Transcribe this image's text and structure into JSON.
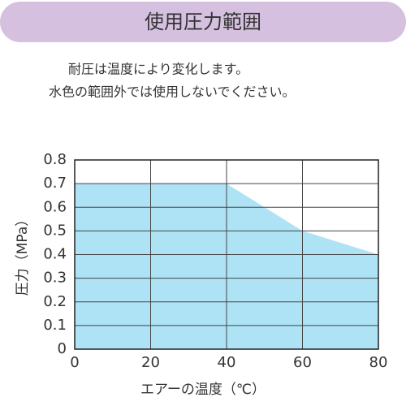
{
  "header": {
    "title": "使用圧力範囲"
  },
  "notes": [
    "耐圧は温度により変化します。",
    "水色の範囲外では使用しないでください。"
  ],
  "chart_data": {
    "type": "area",
    "x": [
      0,
      20,
      40,
      60,
      80
    ],
    "values": [
      0.7,
      0.7,
      0.7,
      0.5,
      0.4
    ],
    "color": "#aee3f5",
    "xlabel": "エアーの温度（℃）",
    "ylabel": "圧力（MPa）",
    "xlim": [
      0,
      80
    ],
    "xticks": [
      0,
      20,
      40,
      60,
      80
    ],
    "ylim": [
      0,
      0.8
    ],
    "yticks": [
      0,
      0.1,
      0.2,
      0.3,
      0.4,
      0.5,
      0.6,
      0.7,
      0.8
    ],
    "grid": true
  }
}
